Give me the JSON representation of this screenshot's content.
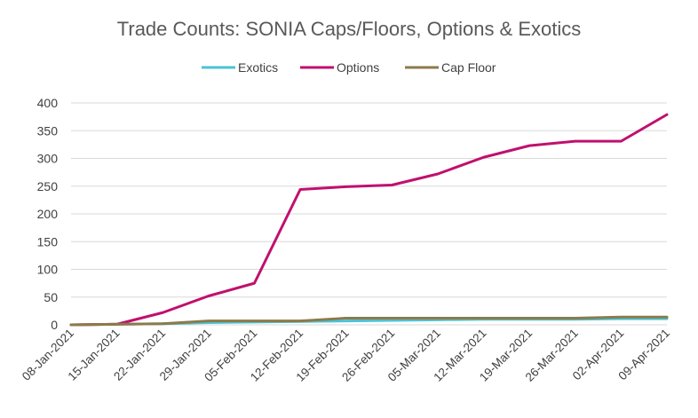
{
  "chart_data": {
    "type": "line",
    "title": "Trade Counts: SONIA Caps/Floors, Options & Exotics",
    "xlabel": "",
    "ylabel": "",
    "ylim": [
      0,
      400
    ],
    "yticks": [
      0,
      50,
      100,
      150,
      200,
      250,
      300,
      350,
      400
    ],
    "grid": true,
    "legend_position": "top",
    "categories": [
      "08-Jan-2021",
      "15-Jan-2021",
      "22-Jan-2021",
      "29-Jan-2021",
      "05-Feb-2021",
      "12-Feb-2021",
      "19-Feb-2021",
      "26-Feb-2021",
      "05-Mar-2021",
      "12-Mar-2021",
      "19-Mar-2021",
      "26-Mar-2021",
      "02-Apr-2021",
      "09-Apr-2021"
    ],
    "series": [
      {
        "name": "Exotics",
        "color": "#4bc3d7",
        "values": [
          0,
          1,
          2,
          4,
          5,
          6,
          7,
          8,
          9,
          10,
          10,
          10,
          11,
          11
        ]
      },
      {
        "name": "Options",
        "color": "#c0106e",
        "values": [
          0,
          1,
          22,
          52,
          75,
          244,
          249,
          252,
          272,
          302,
          323,
          331,
          331,
          379
        ]
      },
      {
        "name": "Cap Floor",
        "color": "#8c7a4a",
        "values": [
          0,
          1,
          2,
          7,
          7,
          7,
          12,
          12,
          12,
          12,
          12,
          12,
          14,
          14
        ]
      }
    ]
  }
}
